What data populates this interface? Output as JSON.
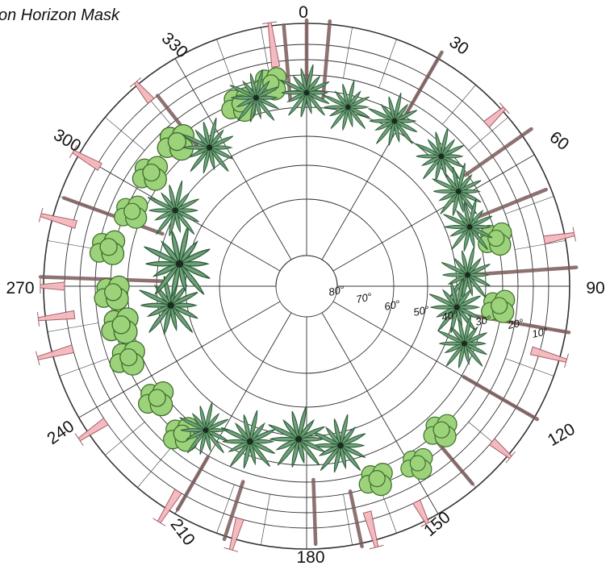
{
  "title": "on Horizon Mask",
  "azimuth_labels": [
    "0",
    "30",
    "60",
    "90",
    "120",
    "150",
    "180",
    "210",
    "240",
    "270",
    "300",
    "330"
  ],
  "altitude_labels": [
    "80°",
    "70°",
    "60°",
    "50°",
    "40°",
    "30°",
    "20°",
    "10°"
  ],
  "colors": {
    "grid": "#333333",
    "tree_fill": "#9bd27a",
    "tree_stroke": "#3f6b2a",
    "palm": "#2f5f3a",
    "trunk": "#7a5a5a",
    "pink": "#f4b8bd"
  },
  "icons": [
    "deciduous-tree-icon",
    "palm-tree-icon",
    "dead-tree-icon"
  ]
}
